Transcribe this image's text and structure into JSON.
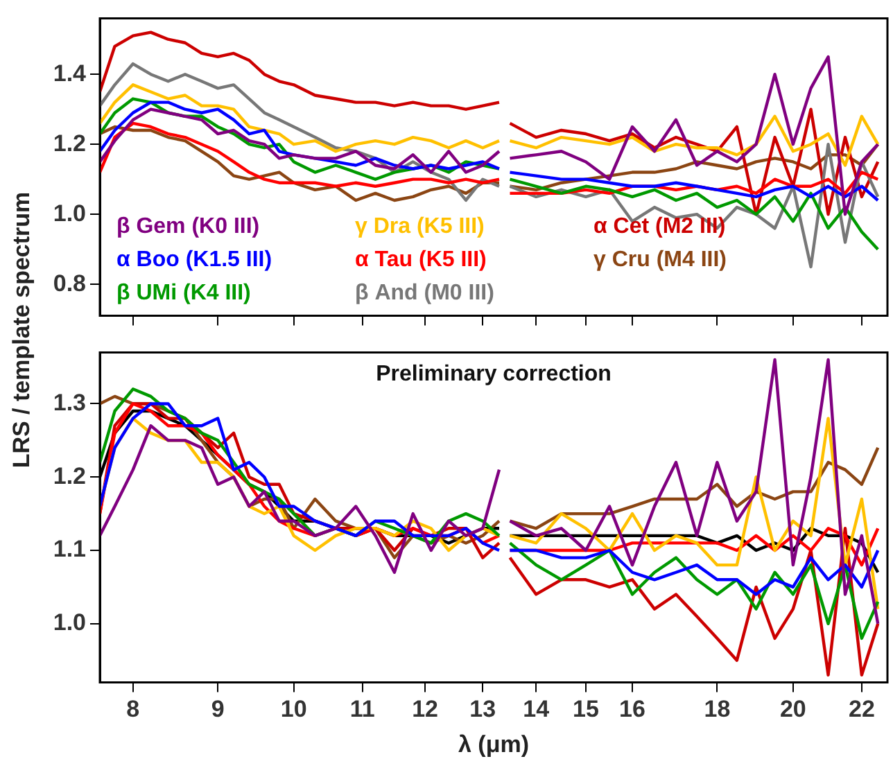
{
  "chart_data": [
    {
      "type": "line",
      "ylabel": "LRS / template spectrum",
      "log": "x",
      "legend": "bottom left",
      "tick_labels": "y",
      "xlim": [
        7.64,
        22.8
      ],
      "xticks": [
        {
          "value": 8,
          "label": null
        },
        {
          "value": 9,
          "label": null
        },
        {
          "value": 10,
          "label": null
        },
        {
          "value": 11,
          "label": null
        },
        {
          "value": 12,
          "label": null
        },
        {
          "value": 13,
          "label": null
        },
        {
          "value": 14,
          "label": null
        },
        {
          "value": 15,
          "label": null
        },
        {
          "value": 16,
          "label": null
        },
        {
          "value": 18,
          "label": null
        },
        {
          "value": 20,
          "label": null
        },
        {
          "value": 22,
          "label": null
        }
      ],
      "ylim": [
        0.71,
        1.56
      ],
      "yticks": [
        {
          "value": 0.8,
          "label": "0.8"
        },
        {
          "value": 1,
          "label": "1.0"
        },
        {
          "value": 1.2,
          "label": "1.2"
        },
        {
          "value": 1.4,
          "label": "1.4"
        }
      ],
      "x": [
        7.64,
        7.8,
        8.0,
        8.2,
        8.4,
        8.6,
        8.8,
        9.0,
        9.2,
        9.4,
        9.6,
        9.8,
        10,
        10.3,
        10.6,
        10.9,
        11.2,
        11.5,
        11.8,
        12.1,
        12.4,
        12.7,
        13.0,
        13.3,
        13.4,
        13.5,
        14,
        14.5,
        15,
        15.5,
        16,
        16.5,
        17,
        17.5,
        18,
        18.5,
        19,
        19.5,
        20,
        20.5,
        21,
        21.5,
        22,
        22.5
      ],
      "series": [
        {
          "name": "β Gem (K0 III)",
          "color": "#800080",
          "values": [
            1.15,
            1.21,
            1.27,
            1.3,
            1.29,
            1.28,
            1.27,
            1.23,
            1.24,
            1.21,
            1.2,
            1.16,
            1.17,
            1.16,
            1.16,
            1.18,
            1.14,
            1.13,
            1.17,
            1.12,
            1.18,
            1.12,
            1.14,
            1.18,
            null,
            1.16,
            1.17,
            1.18,
            1.15,
            1.1,
            1.25,
            1.18,
            1.27,
            1.14,
            1.18,
            1.15,
            1.2,
            1.4,
            1.2,
            1.36,
            1.45,
            1.0,
            1.15,
            1.2
          ]
        },
        {
          "name": "α Boo (K1.5 III)",
          "color": "#0000ff",
          "values": [
            1.18,
            1.24,
            1.29,
            1.32,
            1.32,
            1.3,
            1.29,
            1.3,
            1.27,
            1.23,
            1.24,
            1.18,
            1.17,
            1.16,
            1.15,
            1.14,
            1.16,
            1.14,
            1.13,
            1.14,
            1.13,
            1.14,
            1.15,
            1.13,
            null,
            1.12,
            1.11,
            1.1,
            1.1,
            1.09,
            1.08,
            1.08,
            1.09,
            1.08,
            1.07,
            1.06,
            1.05,
            1.07,
            1.08,
            1.05,
            1.08,
            1.05,
            1.08,
            1.04
          ]
        },
        {
          "name": "β UMi (K4 III)",
          "color": "#009900",
          "values": [
            1.23,
            1.29,
            1.33,
            1.32,
            1.29,
            1.28,
            1.28,
            1.25,
            1.23,
            1.2,
            1.19,
            1.2,
            1.15,
            1.12,
            1.14,
            1.12,
            1.1,
            1.12,
            1.13,
            1.14,
            1.12,
            1.15,
            1.14,
            1.13,
            null,
            1.1,
            1.08,
            1.06,
            1.08,
            1.07,
            1.05,
            1.07,
            1.04,
            1.06,
            1.02,
            1.04,
            1.0,
            1.05,
            0.98,
            1.06,
            0.96,
            1.02,
            0.95,
            0.9
          ]
        },
        {
          "name": "γ Dra (K5 III)",
          "color": "#ffc000",
          "values": [
            1.26,
            1.32,
            1.37,
            1.35,
            1.33,
            1.34,
            1.31,
            1.31,
            1.3,
            1.25,
            1.24,
            1.23,
            1.2,
            1.21,
            1.18,
            1.2,
            1.21,
            1.2,
            1.22,
            1.21,
            1.19,
            1.21,
            1.19,
            1.21,
            null,
            1.21,
            1.19,
            1.22,
            1.21,
            1.2,
            1.22,
            1.18,
            1.2,
            1.19,
            1.19,
            1.17,
            1.2,
            1.28,
            1.18,
            1.2,
            1.23,
            1.14,
            1.28,
            1.2
          ]
        },
        {
          "name": "α Tau (K5 III)",
          "color": "#ff0000",
          "values": [
            1.12,
            1.22,
            1.26,
            1.25,
            1.23,
            1.22,
            1.2,
            1.18,
            1.15,
            1.12,
            1.1,
            1.09,
            1.09,
            1.09,
            1.08,
            1.09,
            1.08,
            1.09,
            1.1,
            1.1,
            1.09,
            1.1,
            1.09,
            1.1,
            null,
            1.06,
            1.06,
            1.06,
            1.07,
            1.06,
            1.08,
            1.08,
            1.07,
            1.08,
            1.07,
            1.08,
            1.06,
            1.1,
            1.08,
            1.08,
            1.1,
            1.06,
            1.12,
            1.1
          ]
        },
        {
          "name": "β And (M0 III)",
          "color": "#777777",
          "values": [
            1.31,
            1.37,
            1.43,
            1.4,
            1.38,
            1.4,
            1.38,
            1.36,
            1.37,
            1.33,
            1.29,
            1.27,
            1.25,
            1.22,
            1.19,
            1.18,
            1.16,
            1.12,
            1.15,
            1.12,
            1.1,
            1.04,
            1.1,
            1.08,
            null,
            1.08,
            1.05,
            1.07,
            1.05,
            1.07,
            0.98,
            1.02,
            0.99,
            1.0,
            0.96,
            1.02,
            1.0,
            0.96,
            1.08,
            0.85,
            1.2,
            0.92,
            1.15,
            1.05
          ]
        },
        {
          "name": "α Cet (M2 III)",
          "color": "#cc0000",
          "values": [
            1.35,
            1.48,
            1.51,
            1.52,
            1.5,
            1.49,
            1.46,
            1.45,
            1.46,
            1.44,
            1.4,
            1.38,
            1.37,
            1.34,
            1.33,
            1.32,
            1.32,
            1.31,
            1.32,
            1.31,
            1.31,
            1.3,
            1.31,
            1.32,
            null,
            1.26,
            1.22,
            1.24,
            1.23,
            1.21,
            1.23,
            1.19,
            1.22,
            1.2,
            1.18,
            1.25,
            1.0,
            1.22,
            1.08,
            1.3,
            1.0,
            1.22,
            1.05,
            1.15
          ]
        },
        {
          "name": "γ Cru (M4 III)",
          "color": "#8b4513",
          "values": [
            1.23,
            1.25,
            1.24,
            1.24,
            1.22,
            1.21,
            1.18,
            1.15,
            1.11,
            1.1,
            1.11,
            1.12,
            1.09,
            1.07,
            1.08,
            1.04,
            1.06,
            1.04,
            1.05,
            1.07,
            1.08,
            1.06,
            1.09,
            1.09,
            null,
            1.08,
            1.07,
            1.09,
            1.1,
            1.11,
            1.12,
            1.12,
            1.13,
            1.15,
            1.14,
            1.13,
            1.15,
            1.16,
            1.15,
            1.13,
            1.17,
            1.17,
            1.14,
            1.2
          ]
        }
      ]
    },
    {
      "type": "line",
      "title": "Preliminary correction",
      "xlabel": "λ (μm)",
      "log": "x",
      "xlim": [
        7.64,
        22.8
      ],
      "xticks": [
        8,
        9,
        10,
        11,
        12,
        13,
        14,
        15,
        16,
        18,
        20,
        22
      ],
      "ylim": [
        0.92,
        1.37
      ],
      "yticks": [
        {
          "value": 1,
          "label": "1.0"
        },
        {
          "value": 1.1,
          "label": "1.1"
        },
        {
          "value": 1.2,
          "label": "1.2"
        },
        {
          "value": 1.3,
          "label": "1.3"
        }
      ],
      "x": [
        7.64,
        7.8,
        8.0,
        8.2,
        8.4,
        8.6,
        8.8,
        9.0,
        9.2,
        9.4,
        9.6,
        9.8,
        10,
        10.3,
        10.6,
        10.9,
        11.2,
        11.5,
        11.8,
        12.1,
        12.4,
        12.7,
        13.0,
        13.3,
        13.4,
        13.5,
        14,
        14.5,
        15,
        15.5,
        16,
        16.5,
        17,
        17.5,
        18,
        18.5,
        19,
        19.5,
        20,
        20.5,
        21,
        21.5,
        22,
        22.5
      ],
      "series": [
        {
          "color": "#800080",
          "values": [
            1.12,
            1.16,
            1.21,
            1.27,
            1.25,
            1.25,
            1.24,
            1.19,
            1.2,
            1.16,
            1.18,
            1.14,
            1.14,
            1.12,
            1.13,
            1.16,
            1.12,
            1.07,
            1.15,
            1.1,
            1.14,
            1.12,
            1.13,
            1.21,
            null,
            1.14,
            1.12,
            1.13,
            1.1,
            1.16,
            1.08,
            1.16,
            1.22,
            1.12,
            1.22,
            1.14,
            1.18,
            1.36,
            1.08,
            1.2,
            1.36,
            1.04,
            1.12,
            1.0
          ]
        },
        {
          "color": "#0000ff",
          "values": [
            1.16,
            1.24,
            1.28,
            1.3,
            1.3,
            1.27,
            1.27,
            1.28,
            1.21,
            1.22,
            1.2,
            1.16,
            1.16,
            1.14,
            1.13,
            1.12,
            1.14,
            1.14,
            1.12,
            1.12,
            1.12,
            1.13,
            1.11,
            1.1,
            null,
            1.1,
            1.1,
            1.09,
            1.09,
            1.1,
            1.07,
            1.06,
            1.07,
            1.08,
            1.06,
            1.06,
            1.04,
            1.06,
            1.05,
            1.09,
            1.06,
            1.08,
            1.05,
            1.1
          ]
        },
        {
          "color": "#009900",
          "values": [
            1.22,
            1.29,
            1.32,
            1.31,
            1.29,
            1.28,
            1.26,
            1.25,
            1.22,
            1.19,
            1.18,
            1.17,
            1.15,
            1.12,
            1.13,
            1.12,
            1.14,
            1.13,
            1.12,
            1.11,
            1.14,
            1.15,
            1.14,
            1.12,
            null,
            1.11,
            1.08,
            1.06,
            1.08,
            1.1,
            1.04,
            1.07,
            1.09,
            1.06,
            1.04,
            1.06,
            1.02,
            1.07,
            1.04,
            1.08,
            1.0,
            1.08,
            0.98,
            1.03
          ]
        },
        {
          "color": "#ffc000",
          "values": [
            1.16,
            1.24,
            1.28,
            1.26,
            1.25,
            1.25,
            1.22,
            1.22,
            1.2,
            1.16,
            1.15,
            1.16,
            1.12,
            1.1,
            1.12,
            1.13,
            1.13,
            1.12,
            1.14,
            1.13,
            1.1,
            1.12,
            1.13,
            1.12,
            null,
            1.12,
            1.11,
            1.15,
            1.13,
            1.1,
            1.15,
            1.1,
            1.12,
            1.11,
            1.08,
            1.08,
            1.2,
            1.1,
            1.14,
            1.12,
            1.28,
            1.08,
            1.17,
            1.02
          ]
        },
        {
          "color": "#ff0000",
          "values": [
            1.15,
            1.26,
            1.3,
            1.29,
            1.27,
            1.27,
            1.26,
            1.23,
            1.21,
            1.19,
            1.16,
            1.14,
            1.13,
            1.12,
            1.13,
            1.12,
            1.13,
            1.12,
            1.13,
            1.12,
            1.12,
            1.13,
            1.11,
            1.12,
            null,
            1.1,
            1.1,
            1.1,
            1.1,
            1.1,
            1.11,
            1.11,
            1.11,
            1.11,
            1.11,
            1.1,
            1.12,
            1.1,
            1.12,
            1.1,
            1.13,
            1.12,
            1.08,
            1.13
          ]
        },
        {
          "color": "#cc0000",
          "values": [
            1.15,
            1.27,
            1.3,
            1.3,
            1.28,
            1.28,
            1.26,
            1.24,
            1.26,
            1.2,
            1.19,
            1.19,
            1.15,
            1.14,
            1.13,
            1.13,
            1.13,
            1.1,
            1.13,
            1.12,
            1.13,
            1.13,
            1.09,
            1.11,
            null,
            1.09,
            1.04,
            1.06,
            1.06,
            1.05,
            1.06,
            1.02,
            1.04,
            1.01,
            0.98,
            0.95,
            1.05,
            0.98,
            1.02,
            1.1,
            0.93,
            1.13,
            0.93,
            1.0
          ]
        },
        {
          "color": "#8b4513",
          "values": [
            1.3,
            1.31,
            1.3,
            1.3,
            1.29,
            1.28,
            1.25,
            1.22,
            1.2,
            1.16,
            1.17,
            1.17,
            1.13,
            1.17,
            1.14,
            1.13,
            1.13,
            1.09,
            1.12,
            1.11,
            1.12,
            1.11,
            1.12,
            1.14,
            null,
            1.14,
            1.13,
            1.15,
            1.15,
            1.15,
            1.16,
            1.17,
            1.17,
            1.17,
            1.19,
            1.16,
            1.18,
            1.17,
            1.18,
            1.18,
            1.22,
            1.21,
            1.19,
            1.24
          ]
        },
        {
          "color": "#000000",
          "values": [
            1.2,
            1.26,
            1.29,
            1.29,
            1.28,
            1.27,
            1.25,
            1.23,
            1.21,
            1.19,
            1.18,
            1.16,
            1.14,
            1.14,
            1.13,
            1.12,
            1.13,
            1.12,
            1.12,
            1.12,
            1.11,
            1.12,
            1.13,
            1.13,
            null,
            1.12,
            1.12,
            1.12,
            1.12,
            1.12,
            1.12,
            1.12,
            1.12,
            1.12,
            1.11,
            1.12,
            1.1,
            1.11,
            1.1,
            1.13,
            1.12,
            1.12,
            1.11,
            1.07
          ]
        }
      ]
    }
  ]
}
